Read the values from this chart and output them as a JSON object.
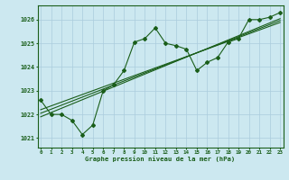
{
  "xlabel": "Graphe pression niveau de la mer (hPa)",
  "background_color": "#cce8f0",
  "grid_color": "#aaccdd",
  "line_color": "#1a5e1a",
  "x_ticks": [
    0,
    1,
    2,
    3,
    4,
    5,
    6,
    7,
    8,
    9,
    10,
    11,
    12,
    13,
    14,
    15,
    16,
    17,
    18,
    19,
    20,
    21,
    22,
    23
  ],
  "y_ticks": [
    1021,
    1022,
    1023,
    1024,
    1025,
    1026
  ],
  "ylim": [
    1020.6,
    1026.6
  ],
  "xlim": [
    -0.3,
    23.3
  ],
  "main_series": [
    1022.6,
    1022.0,
    1022.0,
    1021.75,
    1021.15,
    1021.55,
    1023.0,
    1023.25,
    1023.85,
    1025.05,
    1025.2,
    1025.65,
    1025.0,
    1024.9,
    1024.75,
    1023.85,
    1024.2,
    1024.4,
    1025.05,
    1025.2,
    1026.0,
    1026.0,
    1026.1,
    1026.3
  ],
  "trend1": [
    1021.9,
    1022.08,
    1022.26,
    1022.44,
    1022.62,
    1022.8,
    1022.98,
    1023.16,
    1023.34,
    1023.52,
    1023.7,
    1023.88,
    1024.06,
    1024.24,
    1024.42,
    1024.6,
    1024.78,
    1024.96,
    1025.14,
    1025.32,
    1025.5,
    1025.68,
    1025.86,
    1026.04
  ],
  "trend2": [
    1022.05,
    1022.22,
    1022.39,
    1022.56,
    1022.73,
    1022.9,
    1023.07,
    1023.24,
    1023.41,
    1023.58,
    1023.75,
    1023.92,
    1024.09,
    1024.26,
    1024.43,
    1024.6,
    1024.77,
    1024.94,
    1025.11,
    1025.28,
    1025.45,
    1025.62,
    1025.79,
    1025.96
  ],
  "trend3": [
    1022.2,
    1022.36,
    1022.52,
    1022.68,
    1022.84,
    1023.0,
    1023.16,
    1023.32,
    1023.48,
    1023.64,
    1023.8,
    1023.96,
    1024.12,
    1024.28,
    1024.44,
    1024.6,
    1024.76,
    1024.92,
    1025.08,
    1025.24,
    1025.4,
    1025.56,
    1025.72,
    1025.88
  ]
}
